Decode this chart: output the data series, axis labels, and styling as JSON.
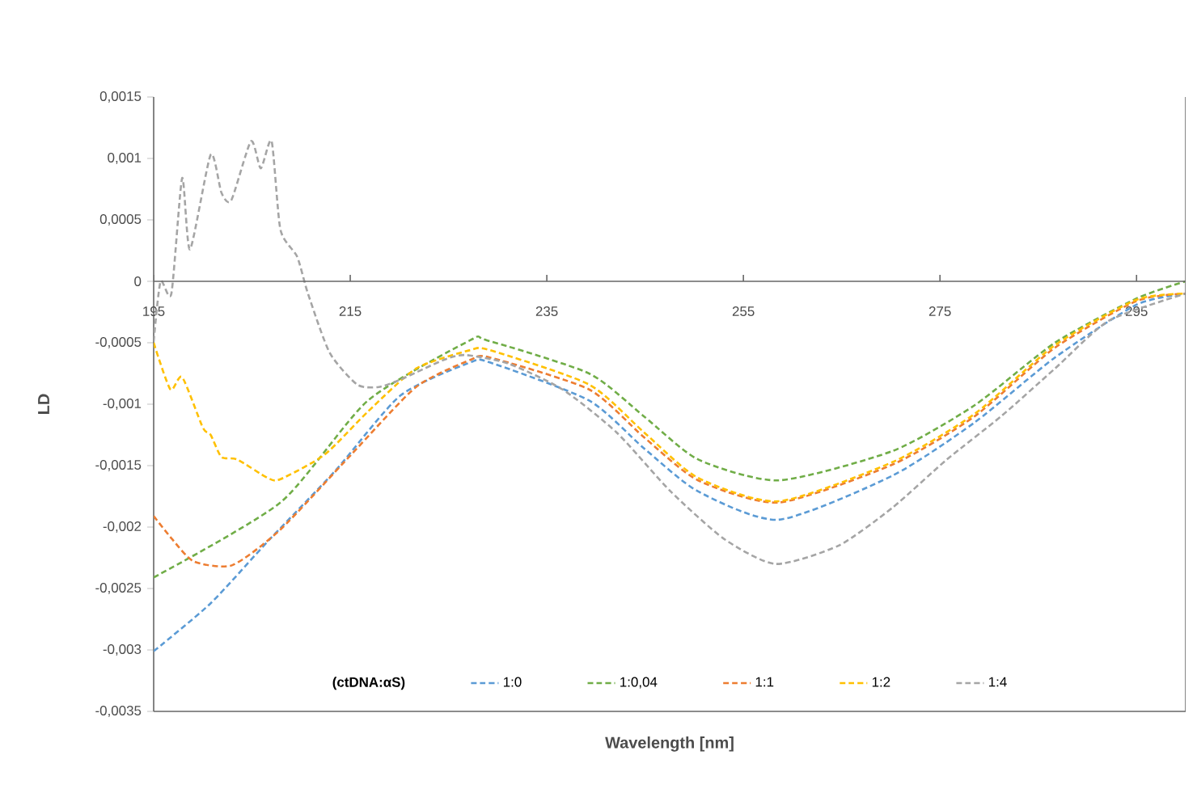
{
  "chart_data": {
    "type": "line",
    "xlabel": "Wavelength [nm]",
    "ylabel": "LD",
    "legend_title": "(ctDNA:αS)",
    "xlim": [
      195,
      300
    ],
    "xticks": [
      195,
      215,
      235,
      255,
      275,
      295
    ],
    "ylim": [
      -0.0035,
      0.0015
    ],
    "yticks": [
      {
        "value": -0.0035,
        "label": "-0,0035"
      },
      {
        "value": -0.003,
        "label": "-0,003"
      },
      {
        "value": -0.0025,
        "label": "-0,0025"
      },
      {
        "value": -0.002,
        "label": "-0,002"
      },
      {
        "value": -0.0015,
        "label": "-0,0015"
      },
      {
        "value": -0.001,
        "label": "-0,001"
      },
      {
        "value": -0.0005,
        "label": "-0,0005"
      },
      {
        "value": 0,
        "label": "0"
      },
      {
        "value": 0.0005,
        "label": "0,0005"
      },
      {
        "value": 0.001,
        "label": "0,001"
      },
      {
        "value": 0.0015,
        "label": "0,0015"
      }
    ],
    "grid": false,
    "legend": "bottom",
    "marker": "none",
    "line_style": "dashed",
    "series": [
      {
        "name": "1:0",
        "color": "#5b9bd5",
        "x": [
          195,
          200.8,
          206.8,
          213.5,
          220.1,
          227.2,
          229.2,
          239.3,
          244.9,
          250.4,
          258.6,
          270.2,
          278.5,
          286.7,
          295,
          300
        ],
        "values": [
          -0.00301,
          -0.00262,
          -0.0021,
          -0.00154,
          -0.00093,
          -0.00066,
          -0.00066,
          -0.00097,
          -0.00136,
          -0.00171,
          -0.00194,
          -0.00158,
          -0.00115,
          -0.00062,
          -0.00019,
          -0.0001
        ]
      },
      {
        "name": "1:0,04",
        "color": "#70ad47",
        "x": [
          195,
          207.9,
          216.8,
          227.2,
          228.9,
          239.3,
          244.9,
          250.4,
          258.6,
          270.2,
          278.5,
          286.7,
          295,
          300
        ],
        "values": [
          -0.00241,
          -0.0018,
          -0.00097,
          -0.00048,
          -0.00048,
          -0.00075,
          -0.0011,
          -0.00145,
          -0.00162,
          -0.00138,
          -0.00101,
          -0.0005,
          -0.00014,
          0
        ]
      },
      {
        "name": "1:1",
        "color": "#ed7d31",
        "x": [
          195,
          196.9,
          199.1,
          203,
          207.9,
          215.1,
          221.7,
          227.2,
          229.2,
          239.3,
          244.9,
          250.4,
          258.6,
          270.2,
          278.5,
          286.7,
          295,
          300
        ],
        "values": [
          -0.00191,
          -0.0021,
          -0.00228,
          -0.00231,
          -0.00202,
          -0.00141,
          -0.00086,
          -0.00064,
          -0.00062,
          -0.00088,
          -0.00127,
          -0.00162,
          -0.0018,
          -0.00149,
          -0.0011,
          -0.00054,
          -0.00016,
          -0.0001
        ]
      },
      {
        "name": "1:2",
        "color": "#ffc000",
        "x": [
          195,
          196.7,
          197.9,
          200,
          200.8,
          201.9,
          203.5,
          206.6,
          207.9,
          212.4,
          216.8,
          221.7,
          227.2,
          229.2,
          239.3,
          244.9,
          250.4,
          258.6,
          270.2,
          278.5,
          286.7,
          295,
          300
        ],
        "values": [
          -0.0005,
          -0.00088,
          -0.00078,
          -0.00119,
          -0.00125,
          -0.00143,
          -0.00145,
          -0.0016,
          -0.00161,
          -0.00141,
          -0.00106,
          -0.00071,
          -0.00056,
          -0.00056,
          -0.00084,
          -0.00123,
          -0.0016,
          -0.00179,
          -0.00147,
          -0.00108,
          -0.00052,
          -0.00015,
          -0.0001
        ]
      },
      {
        "name": "1:4",
        "color": "#a5a5a5",
        "x": [
          195,
          195.7,
          196.8,
          197.9,
          198.7,
          200.8,
          201.9,
          202.9,
          204.9,
          205.9,
          207,
          207.9,
          209.6,
          210.7,
          212.9,
          215.7,
          217.9,
          220.1,
          224.5,
          226.7,
          231.1,
          236.6,
          242.1,
          247.6,
          253.1,
          258.3,
          264.7,
          270.2,
          275.7,
          281.2,
          286.7,
          292.2,
          300
        ],
        "values": [
          -0.00049,
          0,
          -0.0001,
          0.00084,
          0.00026,
          0.00103,
          0.00072,
          0.00066,
          0.00114,
          0.00092,
          0.00114,
          0.00042,
          0.0002,
          -0.0001,
          -0.00058,
          -0.00084,
          -0.00086,
          -0.0008,
          -0.00064,
          -0.0006,
          -0.00067,
          -0.00088,
          -0.00123,
          -0.00171,
          -0.0021,
          -0.0023,
          -0.00215,
          -0.00184,
          -0.00145,
          -0.0011,
          -0.00071,
          -0.00032,
          -0.0001
        ]
      }
    ]
  }
}
